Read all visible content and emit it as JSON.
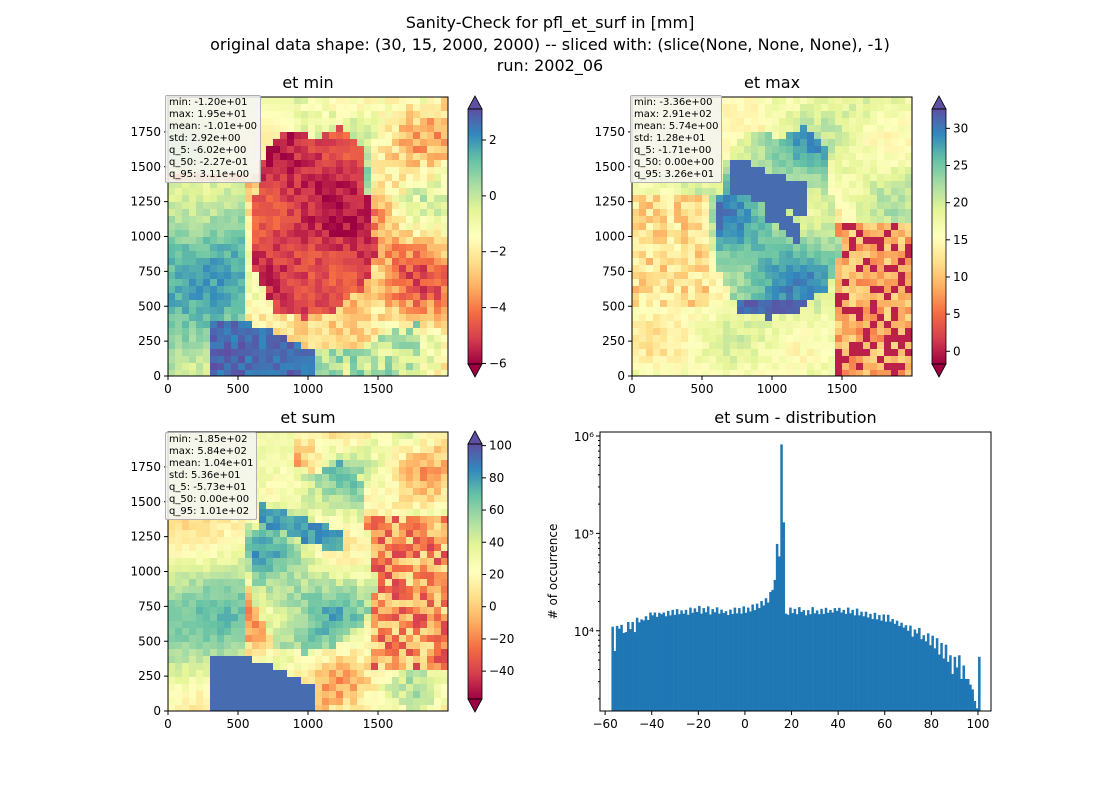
{
  "figure": {
    "title_lines": [
      "Sanity-Check for pfl_et_surf in [mm]",
      "original data shape: (30, 15, 2000, 2000) -- sliced with: (slice(None, None, None), -1)",
      "run: 2002_06"
    ]
  },
  "panels": [
    {
      "title": "et min",
      "stats": [
        "min: -1.20e+01",
        "max: 1.95e+01",
        "mean: -1.01e+00",
        "std: 2.92e+00",
        "q_5: -6.02e+00",
        "q_50: -2.27e-01",
        "q_95: 3.11e+00"
      ],
      "x_ticks": [
        "0",
        "500",
        "1000",
        "1500"
      ],
      "y_ticks": [
        "0",
        "250",
        "500",
        "750",
        "1000",
        "1250",
        "1500",
        "1750"
      ],
      "colorbar_ticks": [
        "−6",
        "−4",
        "−2",
        "0",
        "2"
      ],
      "colorbar_range": [
        -6.02,
        3.11
      ]
    },
    {
      "title": "et max",
      "stats": [
        "min: -3.36e+00",
        "max: 2.91e+02",
        "mean: 5.74e+00",
        "std: 1.28e+01",
        "q_5: -1.71e+00",
        "q_50: 0.00e+00",
        "q_95: 3.26e+01"
      ],
      "x_ticks": [
        "0",
        "500",
        "1000",
        "1500"
      ],
      "y_ticks": [
        "0",
        "250",
        "500",
        "750",
        "1000",
        "1250",
        "1500",
        "1750"
      ],
      "colorbar_ticks": [
        "0",
        "5",
        "10",
        "15",
        "20",
        "25",
        "30"
      ],
      "colorbar_range": [
        -1.71,
        32.6
      ]
    },
    {
      "title": "et sum",
      "stats": [
        "min: -1.85e+02",
        "max: 5.84e+02",
        "mean: 1.04e+01",
        "std: 5.36e+01",
        "q_5: -5.73e+01",
        "q_50: 0.00e+00",
        "q_95: 1.01e+02"
      ],
      "x_ticks": [
        "0",
        "500",
        "1000",
        "1500"
      ],
      "y_ticks": [
        "0",
        "250",
        "500",
        "750",
        "1000",
        "1250",
        "1500",
        "1750"
      ],
      "colorbar_ticks": [
        "−40",
        "−20",
        "0",
        "20",
        "40",
        "60",
        "80",
        "100"
      ],
      "colorbar_range": [
        -57.3,
        101
      ]
    }
  ],
  "chart_data": {
    "type": "bar",
    "title": "et sum - distribution",
    "xlabel": "",
    "ylabel": "# of occurrence",
    "xlim": [
      -62.2,
      105.6
    ],
    "ylog": true,
    "x_ticks": [
      "−60",
      "−40",
      "−20",
      "0",
      "20",
      "40",
      "60",
      "80",
      "100"
    ],
    "y_ticks": [
      "10⁴",
      "10⁵",
      "10⁶"
    ],
    "bin_range": [
      -57.3,
      101
    ],
    "values": [
      11000,
      6200,
      11200,
      10500,
      11500,
      9500,
      9700,
      12300,
      10400,
      12300,
      9700,
      13600,
      12200,
      13100,
      12800,
      14100,
      12900,
      15400,
      14400,
      15400,
      13900,
      15300,
      14800,
      15400,
      14100,
      16000,
      14400,
      16400,
      14600,
      16700,
      14800,
      16200,
      15000,
      16400,
      14600,
      17300,
      15300,
      17000,
      15600,
      18000,
      15000,
      17100,
      15500,
      17800,
      14700,
      16700,
      15500,
      17400,
      15000,
      16500,
      15200,
      15900,
      14500,
      16500,
      14900,
      17300,
      15100,
      17100,
      15000,
      17800,
      15300,
      17300,
      15800,
      18600,
      16300,
      19000,
      17100,
      20200,
      18200,
      21600,
      19500,
      25000,
      26300,
      33300,
      78000,
      58000,
      820000,
      130000,
      15000,
      14600,
      17300,
      15200,
      16800,
      14800,
      17500,
      15600,
      16300,
      14400,
      16300,
      14800,
      17500,
      15100,
      16200,
      14800,
      16800,
      14900,
      17200,
      15300,
      16400,
      15400,
      17100,
      16000,
      17200,
      15400,
      16400,
      14900,
      17300,
      15100,
      16400,
      14400,
      16900,
      14400,
      15700,
      14100,
      15700,
      13700,
      14900,
      13200,
      15300,
      13100,
      14500,
      12700,
      14700,
      12400,
      14600,
      12400,
      13200,
      11800,
      12700,
      11200,
      12100,
      10800,
      11400,
      10000,
      11300,
      8700,
      10300,
      9400,
      10700,
      8200,
      9000,
      7800,
      9400,
      7100,
      8900,
      6600,
      8400,
      5700,
      7500,
      5200,
      7200,
      4800,
      5600,
      3600,
      5400,
      4200,
      5600,
      3200,
      4400,
      3200,
      3200,
      2800,
      2500,
      1900,
      1600,
      5400
    ]
  }
}
